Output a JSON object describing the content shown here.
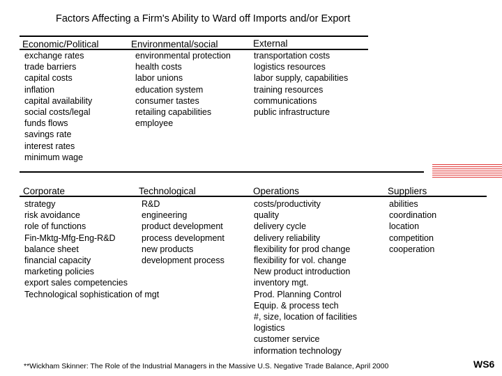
{
  "title": "Factors Affecting a Firm's Ability to Ward off Imports and/or Export",
  "section1": {
    "columns": [
      {
        "header": "Economic/Political",
        "items": [
          "exchange rates",
          "trade barriers",
          "capital costs",
          "inflation",
          "capital availability",
          "social costs/legal",
          "funds flows",
          "savings rate",
          "interest rates",
          "minimum wage"
        ]
      },
      {
        "header": "Environmental/social",
        "items": [
          "environmental protection",
          "health costs",
          "labor unions",
          "education system",
          "consumer tastes",
          "retailing capabilities",
          "employee"
        ]
      },
      {
        "header": "External",
        "items": [
          "transportation costs",
          "logistics resources",
          "labor supply, capabilities",
          "training resources",
          "communications",
          "public infrastructure"
        ]
      }
    ]
  },
  "section2": {
    "columns": [
      {
        "header": "Corporate",
        "items": [
          "strategy",
          "risk avoidance",
          "role of functions",
          "Fin-Mktg-Mfg-Eng-R&D",
          "balance sheet",
          "financial capacity",
          "marketing policies",
          "export sales competencies",
          "Technological sophistication of mgt"
        ]
      },
      {
        "header": "Technological",
        "items": [
          "R&D",
          "engineering",
          "product development",
          "process development",
          "new products",
          "development process"
        ]
      },
      {
        "header": "Operations",
        "items": [
          "costs/productivity",
          "quality",
          "delivery cycle",
          "delivery reliability",
          "flexibility for prod change",
          "flexibility for vol. change",
          "New product introduction",
          "inventory mgt.",
          "Prod. Planning Control",
          "Equip. & process tech",
          "#, size, location of facilities",
          "logistics",
          "customer service",
          "information technology"
        ]
      },
      {
        "header": "Suppliers",
        "items": [
          "abilities",
          "coordination",
          "location",
          "competition",
          "cooperation"
        ]
      }
    ]
  },
  "footnote": "**Wickham Skinner:  The Role of the Industrial Managers in the Massive U.S. Negative Trade Balance, April 2000",
  "badge": "WS6",
  "colors": {
    "accent_red": "#e03030",
    "text": "#000000",
    "background": "#ffffff"
  }
}
